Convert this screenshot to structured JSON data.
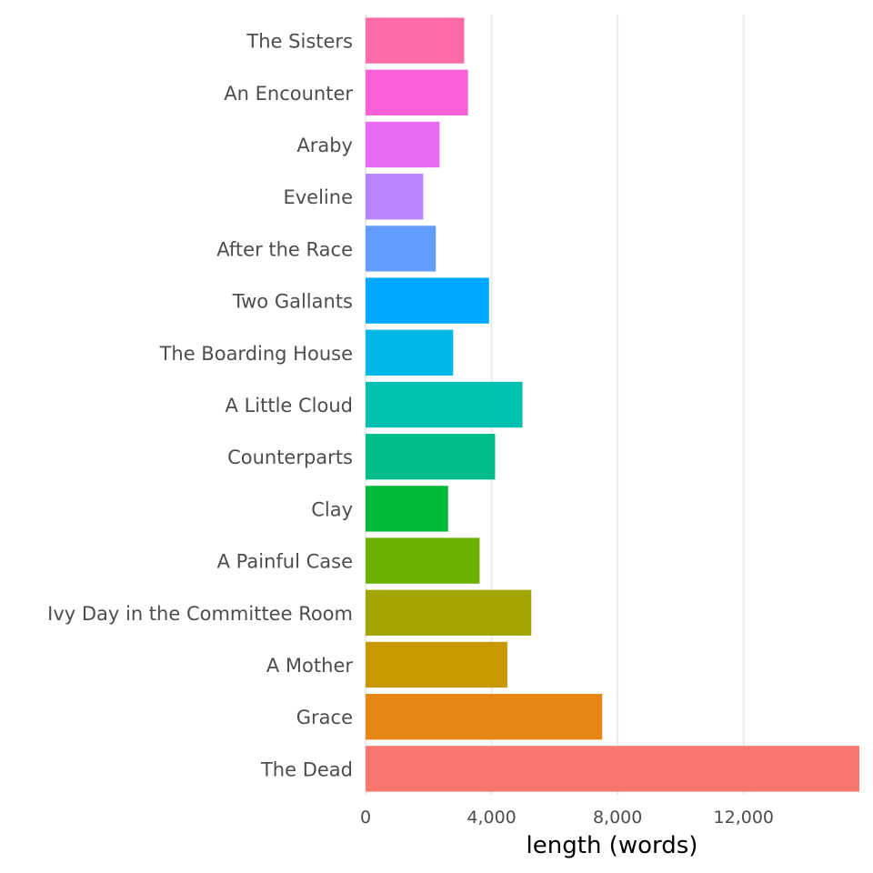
{
  "chart_data": {
    "type": "bar",
    "orientation": "horizontal",
    "title": "",
    "xlabel": "length (words)",
    "ylabel": "",
    "xlim": [
      0,
      15672
    ],
    "xticks": [
      0,
      4000,
      8000,
      12000
    ],
    "xtick_labels": [
      "0",
      "4,000",
      "8,000",
      "12,000"
    ],
    "grid": "vertical major gridlines",
    "legend": "none",
    "categories": [
      "The Sisters",
      "An Encounter",
      "Araby",
      "Eveline",
      "After the Race",
      "Two Gallants",
      "The Boarding House",
      "A Little Cloud",
      "Counterparts",
      "Clay",
      "A Painful Case",
      "Ivy Day in the Committee Room",
      "A Mother",
      "Grace",
      "The Dead"
    ],
    "values": [
      3130,
      3250,
      2350,
      1830,
      2230,
      3920,
      2780,
      4980,
      4110,
      2620,
      3620,
      5260,
      4500,
      7510,
      15672
    ],
    "colors": [
      "#FF6BA9",
      "#FB61D7",
      "#E76BF3",
      "#B983FF",
      "#619CFF",
      "#00A9FF",
      "#00B8E7",
      "#00C0AF",
      "#00BE8C",
      "#00BA38",
      "#6BB100",
      "#A3A500",
      "#C99800",
      "#E68613",
      "#F8766D"
    ]
  }
}
